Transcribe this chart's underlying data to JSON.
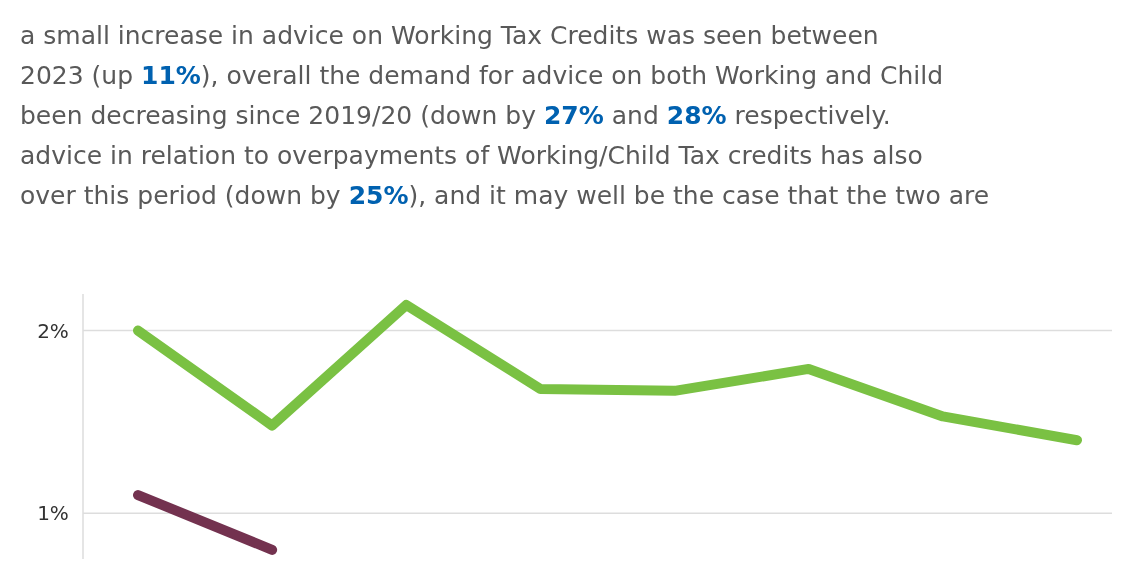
{
  "chart_data": {
    "type": "line",
    "annotations": [
      "a small increase in advice on Working Tax Credits was seen between",
      "2023 (up 11%), overall the demand for advice on both Working and Child",
      "been decreasing since 2019/20 (down by 27% and 28% respectively.",
      "advice in relation to overpayments of Working/Child Tax credits has also",
      "over this period (down by 25%), and it may well be the case that the two are"
    ],
    "categories": [
      null,
      null,
      null,
      null,
      null,
      null,
      null,
      null
    ],
    "series": [
      {
        "color": "#7ac143",
        "values": [
          2.0,
          1.48,
          2.14,
          1.68,
          1.67,
          1.79,
          1.53,
          1.4
        ]
      },
      {
        "color": "#73324f",
        "values": [
          1.1,
          0.8,
          null,
          null,
          null,
          null,
          null,
          null
        ]
      }
    ],
    "ylim": [
      0.75,
      2.2
    ],
    "yticks": [
      {
        "value": 1,
        "label": "1%"
      },
      {
        "value": 2,
        "label": "2%"
      }
    ],
    "grid": "y",
    "marker": "none",
    "line_style": "solid"
  }
}
